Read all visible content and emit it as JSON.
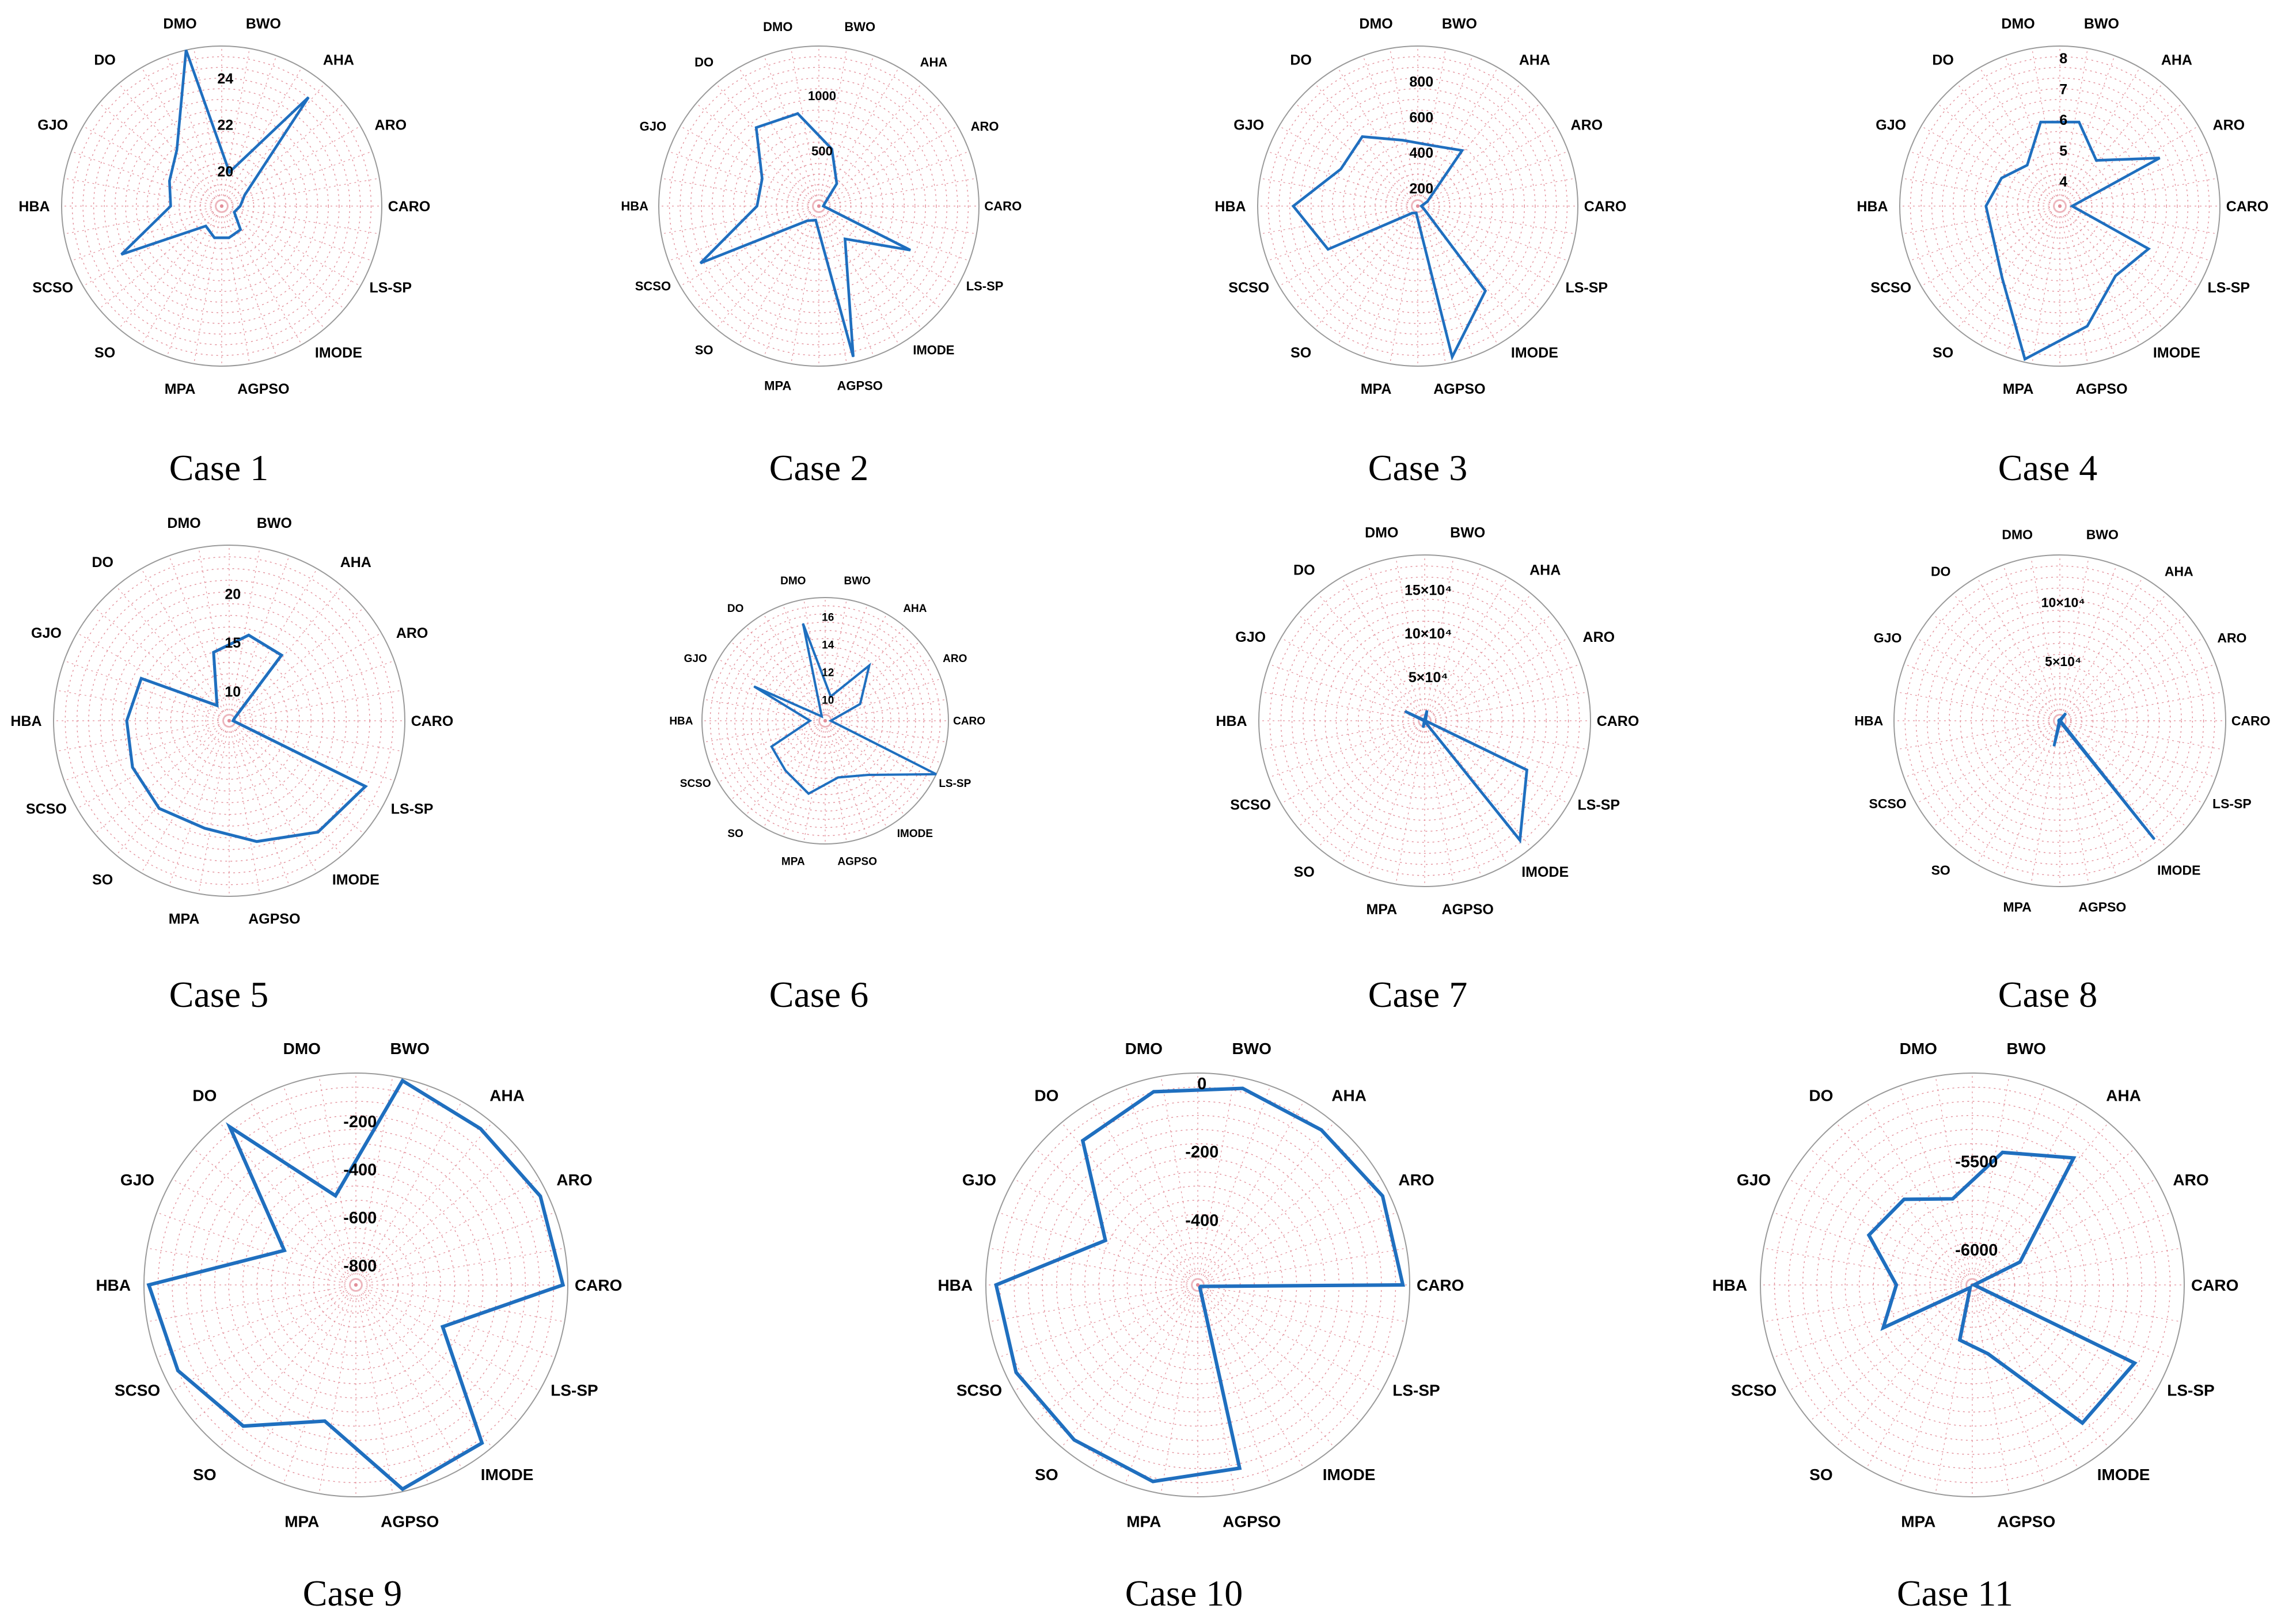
{
  "colors": {
    "series": "#1f6fbf",
    "grid": "#e38f9a",
    "outer": "#9a9a9a"
  },
  "axes": [
    "BWO",
    "AHA",
    "ARO",
    "CARO",
    "LS-SP",
    "IMODE",
    "AGPSO",
    "MPA",
    "SO",
    "SCSO",
    "HBA",
    "GJO",
    "DO",
    "DMO"
  ],
  "chart_data": [
    {
      "type": "radar",
      "caption": "Case 1",
      "rlim": [
        18.5,
        25.4
      ],
      "ticks": [
        {
          "value": 20,
          "label": "20"
        },
        {
          "value": 22,
          "label": "22"
        },
        {
          "value": 24,
          "label": "24"
        }
      ],
      "values": [
        20.0,
        24.5,
        19.6,
        19.3,
        19.1,
        19.8,
        19.9,
        19.9,
        19.6,
        23.3,
        20.7,
        21.0,
        21.6,
        25.4
      ]
    },
    {
      "type": "radar",
      "caption": "Case 2",
      "rlim": [
        0,
        1450
      ],
      "ticks": [
        {
          "value": 500,
          "label": "500"
        },
        {
          "value": 1000,
          "label": "1000"
        }
      ],
      "values": [
        530,
        260,
        60,
        40,
        920,
        380,
        1400,
        130,
        170,
        1190,
        560,
        570,
        910,
        860
      ]
    },
    {
      "type": "radar",
      "caption": "Case 3",
      "rlim": [
        100,
        1000
      ],
      "ticks": [
        {
          "value": 200,
          "label": "200"
        },
        {
          "value": 400,
          "label": "400"
        },
        {
          "value": 600,
          "label": "600"
        },
        {
          "value": 800,
          "label": "800"
        }
      ],
      "values": [
        450,
        500,
        160,
        120,
        140,
        710,
        970,
        140,
        150,
        660,
        800,
        580,
        600,
        480
      ]
    },
    {
      "type": "radar",
      "caption": "Case 4",
      "rlim": [
        3.2,
        8.4
      ],
      "ticks": [
        {
          "value": 4,
          "label": "4"
        },
        {
          "value": 5,
          "label": "5"
        },
        {
          "value": 6,
          "label": "6"
        },
        {
          "value": 7,
          "label": "7"
        },
        {
          "value": 8,
          "label": "8"
        }
      ],
      "values": [
        6.0,
        5.1,
        6.8,
        3.6,
        6.4,
        6.1,
        7.2,
        8.3,
        6.2,
        5.6,
        5.6,
        5.3,
        4.9,
        6.0
      ]
    },
    {
      "type": "radar",
      "caption": "Case 5",
      "rlim": [
        7,
        25
      ],
      "ticks": [
        {
          "value": 10,
          "label": "10"
        },
        {
          "value": 15,
          "label": "15"
        },
        {
          "value": 20,
          "label": "20"
        }
      ],
      "values": [
        16.0,
        15.6,
        7.6,
        7.4,
        22.5,
        21.6,
        19.7,
        18.3,
        18.5,
        18.0,
        17.5,
        17.0,
        9.0,
        14.2
      ]
    },
    {
      "type": "radar",
      "caption": "Case 6",
      "rlim": [
        8.5,
        17.4
      ],
      "ticks": [
        {
          "value": 10,
          "label": "10"
        },
        {
          "value": 12,
          "label": "12"
        },
        {
          "value": 14,
          "label": "14"
        },
        {
          "value": 16,
          "label": "16"
        }
      ],
      "values": [
        10.3,
        13.6,
        11.3,
        8.9,
        17.4,
        13.5,
        12.7,
        13.9,
        13.1,
        12.8,
        9.6,
        14.2,
        8.9,
        15.7
      ]
    },
    {
      "type": "radar",
      "caption": "Case 7",
      "rlim": [
        0,
        190000
      ],
      "ticks": [
        {
          "value": 50000,
          "label": "5×10⁴"
        },
        {
          "value": 100000,
          "label": "10×10⁴"
        },
        {
          "value": 150000,
          "label": "15×10⁴"
        }
      ],
      "values": [
        12000,
        2000,
        1000,
        1000,
        130000,
        175000,
        1000,
        8000,
        1000,
        1000,
        1000,
        25000,
        1000,
        1000
      ]
    },
    {
      "type": "radar",
      "caption": "Case 8",
      "rlim": [
        0,
        140000
      ],
      "ticks": [
        {
          "value": 50000,
          "label": "5×10⁴"
        },
        {
          "value": 100000,
          "label": "10×10⁴"
        }
      ],
      "values": [
        1000,
        8000,
        1000,
        1000,
        1000,
        128000,
        1000,
        22000,
        1000,
        1000,
        1000,
        1000,
        1000,
        1000
      ]
    },
    {
      "type": "radar",
      "caption": "Case 9",
      "rlim": [
        -880,
        0
      ],
      "ticks": [
        {
          "value": -800,
          "label": "-800"
        },
        {
          "value": -600,
          "label": "-600"
        },
        {
          "value": -400,
          "label": "-400"
        },
        {
          "value": -200,
          "label": "-200"
        }
      ],
      "values": [
        -10,
        -50,
        -30,
        -20,
        -480,
        -40,
        -10,
        -300,
        -130,
        -60,
        -20,
        -550,
        -40,
        -500
      ]
    },
    {
      "type": "radar",
      "caption": "Case 10",
      "rlim": [
        -590,
        30
      ],
      "ticks": [
        {
          "value": -400,
          "label": "-400"
        },
        {
          "value": -200,
          "label": "-200"
        },
        {
          "value": 0,
          "label": "0"
        }
      ],
      "values": [
        0,
        -10,
        10,
        10,
        -580,
        -580,
        -40,
        0,
        -10,
        0,
        0,
        -290,
        -50,
        -10
      ]
    },
    {
      "type": "radar",
      "caption": "Case 11",
      "rlim": [
        -6200,
        -5000
      ],
      "ticks": [
        {
          "value": -6000,
          "label": "-6000"
        },
        {
          "value": -5500,
          "label": "-5500"
        }
      ],
      "values": [
        -5430,
        -5280,
        -5900,
        -6190,
        -5180,
        -5200,
        -5800,
        -5880,
        -6180,
        -5640,
        -5770,
        -5550,
        -5580,
        -5700
      ]
    }
  ]
}
